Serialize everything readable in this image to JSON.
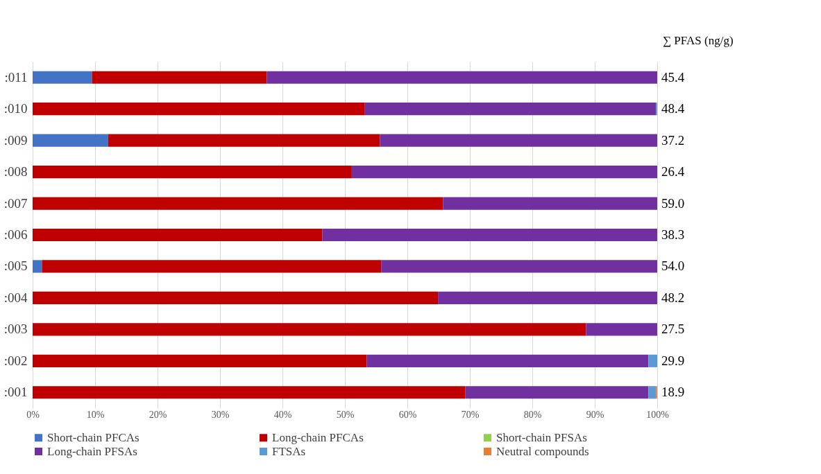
{
  "chart_data": {
    "type": "bar",
    "orientation": "horizontal",
    "stacked": true,
    "categories": [
      ":011",
      ":010",
      ":009",
      ":008",
      ":007",
      ":006",
      ":005",
      ":004",
      ":003",
      ":002",
      ":001"
    ],
    "series": [
      {
        "name": "Short-chain PFCAs",
        "color": "#4472c4",
        "values": [
          9.5,
          0,
          12.1,
          0,
          0,
          0,
          1.5,
          0,
          0,
          0,
          0
        ]
      },
      {
        "name": "Long-chain PFCAs",
        "color": "#c00000",
        "values": [
          28.0,
          53.2,
          43.5,
          51.1,
          65.7,
          46.4,
          54.3,
          64.9,
          88.6,
          53.5,
          69.3
        ]
      },
      {
        "name": "Short-chain PFSAs",
        "color": "#92d050",
        "values": [
          0,
          0,
          0,
          0,
          0,
          0,
          0,
          0,
          0,
          0,
          0
        ]
      },
      {
        "name": "Long-chain PFSAs",
        "color": "#7030a0",
        "values": [
          62.5,
          46.6,
          44.4,
          48.9,
          34.3,
          53.6,
          44.2,
          35.1,
          11.4,
          45.1,
          29.3
        ]
      },
      {
        "name": "FTSAs",
        "color": "#5b9bd5",
        "values": [
          0,
          0.2,
          0,
          0,
          0,
          0,
          0,
          0,
          0,
          1.4,
          1.2
        ]
      },
      {
        "name": "Neutral compounds",
        "color": "#ed7d31",
        "values": [
          0,
          0,
          0,
          0,
          0,
          0,
          0,
          0,
          0,
          0,
          0.2
        ]
      }
    ],
    "annotations": [
      "∑ PFAS (ng/g)",
      "45.4",
      "48.4",
      "37.2",
      "26.4",
      "59.0",
      "38.3",
      "54.0",
      "48.2",
      "27.5",
      "29.9",
      "18.9"
    ],
    "xlim": [
      0,
      100
    ],
    "xticks": [
      {
        "value": 0,
        "label": "0%"
      },
      {
        "value": 10,
        "label": "10%"
      },
      {
        "value": 20,
        "label": "20%"
      },
      {
        "value": 30,
        "label": "30%"
      },
      {
        "value": 40,
        "label": "40%"
      },
      {
        "value": 50,
        "label": "50%"
      },
      {
        "value": 60,
        "label": "60%"
      },
      {
        "value": 70,
        "label": "70%"
      },
      {
        "value": 80,
        "label": "80%"
      },
      {
        "value": 90,
        "label": "90%"
      },
      {
        "value": 100,
        "label": "100%"
      }
    ],
    "grid": "x",
    "legend": "bottom"
  }
}
